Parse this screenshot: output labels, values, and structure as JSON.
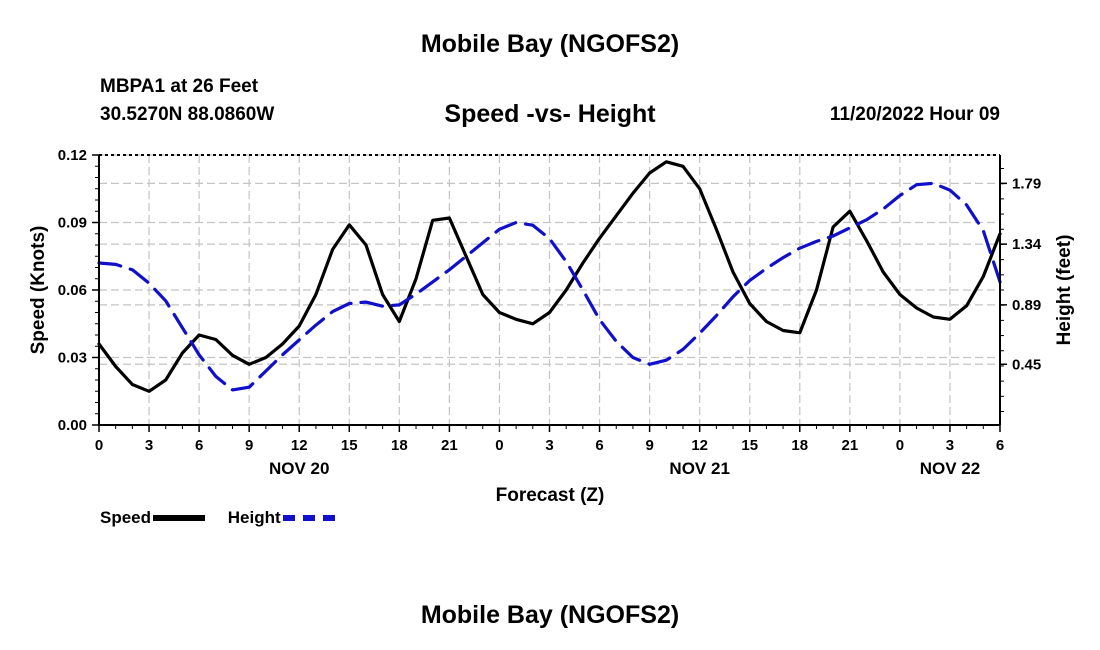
{
  "page": {
    "title": "Mobile Bay (NGOFS2)",
    "footer_title": "Mobile Bay (NGOFS2)",
    "station": "MBPA1 at 26 Feet",
    "coordinates": "30.5270N  88.0860W",
    "datetime": "11/20/2022 Hour 09"
  },
  "chart_data": {
    "type": "line",
    "title": "Speed -vs- Height",
    "xlabel": "Forecast (Z)",
    "ylabel_left": "Speed (Knots)",
    "ylabel_right": "Height (feet)",
    "x_range": [
      0,
      54
    ],
    "x_ticks": [
      0,
      3,
      6,
      9,
      12,
      15,
      18,
      21,
      24,
      27,
      30,
      33,
      36,
      39,
      42,
      45,
      48,
      51,
      54
    ],
    "x_tick_labels": [
      "0",
      "3",
      "6",
      "9",
      "12",
      "15",
      "18",
      "21",
      "0",
      "3",
      "6",
      "9",
      "12",
      "15",
      "18",
      "21",
      "0",
      "3",
      "6"
    ],
    "day_labels": [
      {
        "x": 12,
        "label": "NOV 20"
      },
      {
        "x": 36,
        "label": "NOV 21"
      },
      {
        "x": 51,
        "label": "NOV 22"
      }
    ],
    "y_left_range": [
      0,
      0.12
    ],
    "y_left_ticks": [
      "0.00",
      "0.03",
      "0.06",
      "0.09",
      "0.12"
    ],
    "y_right_range": [
      0.0,
      2.0
    ],
    "y_right_ticks": [
      0.45,
      0.89,
      1.34,
      1.79
    ],
    "y_right_tick_labels": [
      "0.45",
      "0.89",
      "1.34",
      "1.79"
    ],
    "grid": true,
    "legend": {
      "position": "bottom-left",
      "entries": [
        "Speed",
        "Height"
      ]
    },
    "series": [
      {
        "name": "Speed",
        "axis": "left",
        "color": "#000000",
        "style": "solid",
        "x": [
          0,
          1,
          2,
          3,
          4,
          5,
          6,
          7,
          8,
          9,
          10,
          11,
          12,
          13,
          14,
          15,
          16,
          17,
          18,
          19,
          20,
          21,
          22,
          23,
          24,
          25,
          26,
          27,
          28,
          29,
          30,
          31,
          32,
          33,
          34,
          35,
          36,
          37,
          38,
          39,
          40,
          41,
          42,
          43,
          44,
          45,
          46,
          47,
          48,
          49,
          50,
          51,
          52,
          53,
          54
        ],
        "values": [
          0.036,
          0.026,
          0.018,
          0.015,
          0.02,
          0.032,
          0.04,
          0.038,
          0.031,
          0.027,
          0.03,
          0.036,
          0.044,
          0.058,
          0.078,
          0.089,
          0.08,
          0.058,
          0.046,
          0.065,
          0.091,
          0.092,
          0.075,
          0.058,
          0.05,
          0.047,
          0.045,
          0.05,
          0.06,
          0.072,
          0.083,
          0.093,
          0.103,
          0.112,
          0.117,
          0.115,
          0.105,
          0.087,
          0.068,
          0.054,
          0.046,
          0.042,
          0.041,
          0.06,
          0.088,
          0.095,
          0.082,
          0.068,
          0.058,
          0.052,
          0.048,
          0.047,
          0.053,
          0.066,
          0.085
        ]
      },
      {
        "name": "Height",
        "axis": "right",
        "color": "#1010cc",
        "style": "dashed",
        "x": [
          0,
          1,
          2,
          3,
          4,
          5,
          6,
          7,
          8,
          9,
          10,
          11,
          12,
          13,
          14,
          15,
          16,
          17,
          18,
          19,
          20,
          21,
          22,
          23,
          24,
          25,
          26,
          27,
          28,
          29,
          30,
          31,
          32,
          33,
          34,
          35,
          36,
          37,
          38,
          39,
          40,
          41,
          42,
          43,
          44,
          45,
          46,
          47,
          48,
          49,
          50,
          51,
          52,
          53,
          54
        ],
        "values": [
          1.2,
          1.19,
          1.15,
          1.05,
          0.92,
          0.72,
          0.52,
          0.36,
          0.26,
          0.28,
          0.4,
          0.52,
          0.63,
          0.74,
          0.84,
          0.9,
          0.91,
          0.88,
          0.89,
          0.97,
          1.06,
          1.15,
          1.25,
          1.35,
          1.45,
          1.5,
          1.48,
          1.38,
          1.21,
          1.0,
          0.78,
          0.62,
          0.5,
          0.45,
          0.48,
          0.56,
          0.68,
          0.81,
          0.95,
          1.07,
          1.16,
          1.24,
          1.31,
          1.36,
          1.4,
          1.46,
          1.52,
          1.6,
          1.7,
          1.78,
          1.79,
          1.74,
          1.63,
          1.44,
          1.06
        ]
      }
    ]
  }
}
